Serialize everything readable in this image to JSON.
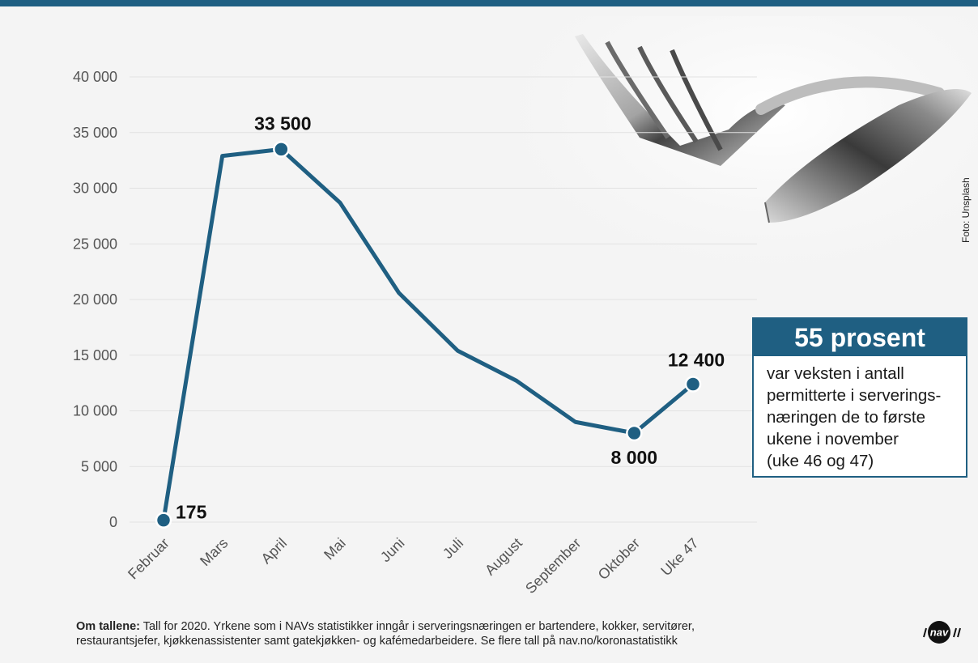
{
  "callout": {
    "headline": "55 prosent",
    "lines": [
      "var veksten i antall",
      "permitterte i serverings-",
      "næringen de to første",
      "ukene i november",
      "(uke 46 og 47)"
    ]
  },
  "photo_credit": "Foto: Unsplash",
  "footer": {
    "label": "Om tallene:",
    "text_line1": " Tall for 2020. Yrkene som i NAVs statistikker inngår i serveringsnæringen er bartendere, kokker, servitører,",
    "text_line2": "restaurantsjefer, kjøkkenassistenter samt gatekjøkken- og kafémedarbeidere. Se flere tall på nav.no/koronastatistikk"
  },
  "logo_text": "nav",
  "colors": {
    "accent": "#1f5f82",
    "line": "#1f5f82",
    "text": "#111111",
    "axis_text": "#555555"
  },
  "chart_data": {
    "type": "line",
    "title": "",
    "xlabel": "",
    "ylabel": "",
    "categories": [
      "Februar",
      "Mars",
      "April",
      "Mai",
      "Juni",
      "Juli",
      "August",
      "September",
      "Oktober",
      "Uke 47"
    ],
    "series": [
      {
        "values": [
          175,
          32900,
          33500,
          28700,
          20600,
          15400,
          12700,
          9000,
          8000,
          12400
        ]
      }
    ],
    "ylim": [
      0,
      40000
    ],
    "yticks": [
      0,
      5000,
      10000,
      15000,
      20000,
      25000,
      30000,
      35000,
      40000
    ],
    "ytick_labels": [
      "0",
      "5 000",
      "10 000",
      "15 000",
      "20 000",
      "25 000",
      "30 000",
      "35 000",
      "40 000"
    ],
    "grid": true,
    "annotations": [
      {
        "index": 0,
        "label": "175"
      },
      {
        "index": 2,
        "label": "33 500"
      },
      {
        "index": 8,
        "label": "8 000"
      },
      {
        "index": 9,
        "label": "12 400"
      }
    ]
  }
}
